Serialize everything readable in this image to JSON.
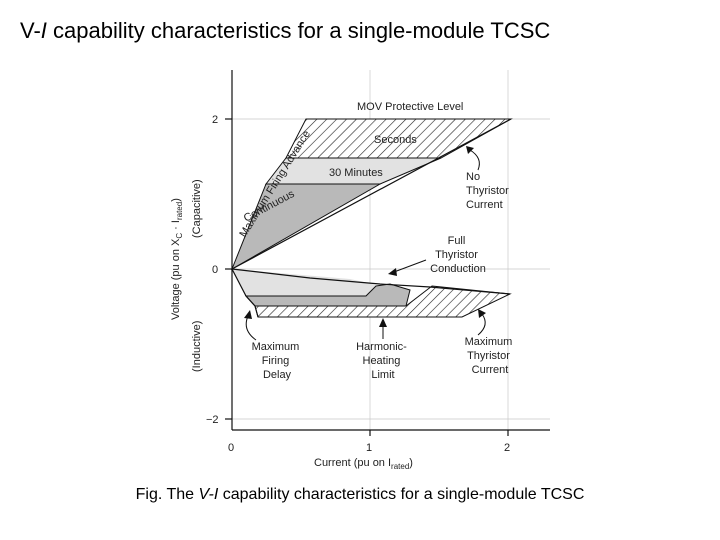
{
  "title": {
    "pre": "V-",
    "italic": "I",
    "post": " capability characteristics for a single-module TCSC"
  },
  "caption": {
    "pre": "Fig. The ",
    "italic": "V-I",
    "post": " capability characteristics for a single-module TCSC"
  },
  "axes": {
    "x_ticks": [
      "0",
      "1",
      "2"
    ],
    "y_ticks": [
      "2",
      "0",
      "−2"
    ],
    "x_label": "Current (pu on I",
    "x_label_sub": "rated",
    "x_label_close": ")",
    "y_label": "Voltage (pu on X",
    "y_label_sub1": "C",
    "y_label_mid": " · I",
    "y_label_sub2": "rated",
    "y_label_close": ")",
    "capacitive": "(Capacitive)",
    "inductive": "(Inductive)"
  },
  "labels": {
    "mov_level": "MOV Protective Level",
    "seconds": "Seconds",
    "thirty_minutes": "30 Minutes",
    "continuous": "Continuous",
    "max_firing_advance": "Maximum Firing Advance",
    "no_thyristor_current": [
      "No",
      "Thyristor",
      "Current"
    ],
    "full_thyristor_conduction": [
      "Full",
      "Thyristor",
      "Conduction"
    ],
    "max_firing_delay": [
      "Maximum",
      "Firing",
      "Delay"
    ],
    "harmonic_heating_limit": [
      "Harmonic-",
      "Heating",
      "Limit"
    ],
    "max_thyristor_current": [
      "Maximum",
      "Thyristor",
      "Current"
    ]
  },
  "colors": {
    "dark_region": "#b9b9b9",
    "light_region": "#e2e2e2",
    "line": "#111111"
  }
}
